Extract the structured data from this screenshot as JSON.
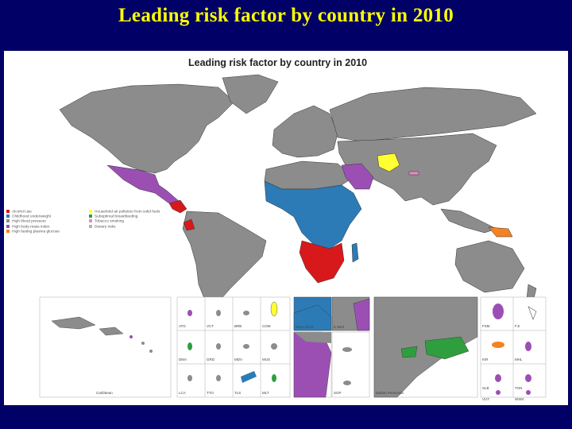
{
  "slide": {
    "title": "Leading risk factor by country in 2010"
  },
  "map": {
    "title": "Leading risk factor by country in 2010",
    "colors": {
      "ocean": "#ffffff",
      "land_default": "#8c8c8c",
      "border": "#333333",
      "slide_background": "#000066",
      "title_color": "#ffff00"
    },
    "legend": [
      {
        "label": "Alcohol use",
        "color": "#d7191c"
      },
      {
        "label": "Childhood underweight",
        "color": "#2c7bb6"
      },
      {
        "label": "High blood pressure",
        "color": "#8c8c8c"
      },
      {
        "label": "High body-mass index",
        "color": "#9b4fb3"
      },
      {
        "label": "High fasting plasma glucose",
        "color": "#f58220"
      },
      {
        "label": "Household air pollution from solid fuels",
        "color": "#ffff33"
      },
      {
        "label": "Suboptimal breastfeeding",
        "color": "#2e9e3f"
      },
      {
        "label": "Tobacco smoking",
        "color": "#e78ac3"
      },
      {
        "label": "Dietary risks",
        "color": "#b2b2b2"
      }
    ],
    "inset_labels": [
      "Caribbean",
      "ATG",
      "VCT",
      "BRB",
      "COM",
      "DMA",
      "GRD",
      "MDV",
      "MUS",
      "LCA",
      "TTO",
      "TLS",
      "MLT",
      "West Africa",
      "E Med",
      "SGP",
      "Balkan Peninsula",
      "FSM",
      "FJI",
      "KIR",
      "MHL",
      "SLB",
      "TON",
      "VUT",
      "WSM"
    ]
  }
}
